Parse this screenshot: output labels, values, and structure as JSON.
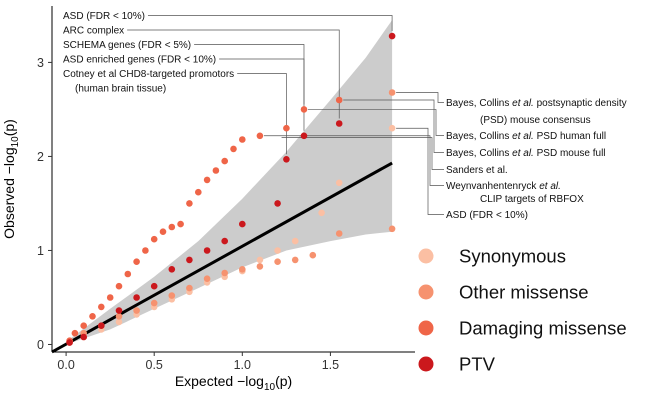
{
  "chart_data": {
    "type": "scatter",
    "title": "",
    "xlabel": "Expected −log10(p)",
    "ylabel": "Observed −log10(p)",
    "xlim": [
      -0.08,
      1.98
    ],
    "ylim": [
      -0.08,
      3.6
    ],
    "x_ticks": [
      "0.0",
      "0.5",
      "1.0",
      "1.5"
    ],
    "y_ticks": [
      "0",
      "1",
      "2",
      "3"
    ],
    "grid": false,
    "legend_position": "bottom-right",
    "reference_line": {
      "x": [
        -0.08,
        1.85
      ],
      "y": [
        -0.08,
        1.93
      ],
      "color": "#000000"
    },
    "confidence_band": {
      "color": "#cccccc",
      "x": [
        0.0,
        0.25,
        0.5,
        0.75,
        1.0,
        1.25,
        1.5,
        1.7,
        1.85
      ],
      "lower": [
        0.0,
        0.16,
        0.38,
        0.6,
        0.82,
        1.0,
        1.1,
        1.17,
        1.2
      ],
      "upper": [
        0.03,
        0.38,
        0.72,
        1.1,
        1.55,
        2.05,
        2.6,
        3.05,
        3.45
      ]
    },
    "series": [
      {
        "name": "Synonymous",
        "color": "#fbbfa3",
        "points": [
          [
            0.02,
            0.02
          ],
          [
            0.1,
            0.08
          ],
          [
            0.2,
            0.16
          ],
          [
            0.3,
            0.24
          ],
          [
            0.4,
            0.32
          ],
          [
            0.5,
            0.4
          ],
          [
            0.6,
            0.48
          ],
          [
            0.7,
            0.56
          ],
          [
            0.8,
            0.66
          ],
          [
            0.9,
            0.72
          ],
          [
            1.0,
            0.78
          ],
          [
            1.1,
            0.9
          ],
          [
            1.2,
            1.0
          ],
          [
            1.3,
            1.1
          ],
          [
            1.45,
            1.4
          ],
          [
            1.55,
            1.72
          ],
          [
            1.85,
            2.3
          ]
        ]
      },
      {
        "name": "Other missense",
        "color": "#f6926f",
        "points": [
          [
            0.02,
            0.03
          ],
          [
            0.1,
            0.12
          ],
          [
            0.2,
            0.2
          ],
          [
            0.3,
            0.3
          ],
          [
            0.4,
            0.36
          ],
          [
            0.5,
            0.44
          ],
          [
            0.6,
            0.52
          ],
          [
            0.7,
            0.6
          ],
          [
            0.8,
            0.7
          ],
          [
            0.9,
            0.76
          ],
          [
            1.0,
            0.8
          ],
          [
            1.1,
            0.83
          ],
          [
            1.2,
            0.88
          ],
          [
            1.3,
            0.9
          ],
          [
            1.4,
            0.95
          ],
          [
            1.55,
            1.18
          ],
          [
            1.85,
            1.23
          ],
          [
            1.85,
            2.68
          ]
        ]
      },
      {
        "name": "Damaging missense",
        "color": "#ef6548",
        "points": [
          [
            0.02,
            0.04
          ],
          [
            0.05,
            0.12
          ],
          [
            0.1,
            0.2
          ],
          [
            0.15,
            0.3
          ],
          [
            0.2,
            0.4
          ],
          [
            0.25,
            0.5
          ],
          [
            0.3,
            0.62
          ],
          [
            0.35,
            0.75
          ],
          [
            0.4,
            0.88
          ],
          [
            0.45,
            1.0
          ],
          [
            0.5,
            1.12
          ],
          [
            0.55,
            1.2
          ],
          [
            0.6,
            1.25
          ],
          [
            0.65,
            1.28
          ],
          [
            0.7,
            1.5
          ],
          [
            0.75,
            1.62
          ],
          [
            0.8,
            1.75
          ],
          [
            0.85,
            1.85
          ],
          [
            0.9,
            1.95
          ],
          [
            0.95,
            2.08
          ],
          [
            1.0,
            2.18
          ],
          [
            1.1,
            2.22
          ],
          [
            1.25,
            2.3
          ],
          [
            1.35,
            2.5
          ],
          [
            1.55,
            2.6
          ]
        ]
      },
      {
        "name": "PTV",
        "color": "#cb181d",
        "points": [
          [
            0.02,
            0.02
          ],
          [
            0.1,
            0.08
          ],
          [
            0.2,
            0.2
          ],
          [
            0.3,
            0.36
          ],
          [
            0.4,
            0.5
          ],
          [
            0.5,
            0.62
          ],
          [
            0.6,
            0.8
          ],
          [
            0.7,
            0.9
          ],
          [
            0.8,
            1.0
          ],
          [
            0.9,
            1.1
          ],
          [
            1.0,
            1.28
          ],
          [
            1.2,
            1.5
          ],
          [
            1.25,
            1.97
          ],
          [
            1.35,
            2.22
          ],
          [
            1.55,
            2.35
          ],
          [
            1.85,
            3.28
          ]
        ]
      }
    ],
    "annotations_left": [
      {
        "label": "ASD (FDR < 10%)",
        "target": [
          1.85,
          3.28
        ]
      },
      {
        "label": "ARC complex",
        "target": [
          1.55,
          2.35
        ]
      },
      {
        "label": "SCHEMA genes (FDR < 5%)",
        "target": [
          1.35,
          2.5
        ]
      },
      {
        "label": "ASD enriched genes (FDR < 10%)",
        "target": [
          1.35,
          2.22
        ]
      },
      {
        "label": "Cotney et al CHD8-targeted promotors",
        "label2": "(human brain tissue)",
        "target": [
          1.25,
          1.97
        ]
      }
    ],
    "annotations_right": [
      {
        "label_pre": "Bayes, Collins ",
        "label_it": "et al.",
        "label_post": " postsynaptic density",
        "label2": "(PSD) mouse consensus",
        "target": [
          1.85,
          2.68
        ]
      },
      {
        "label_pre": "Bayes, Collins ",
        "label_it": "et al.",
        "label_post": " PSD human full",
        "target": [
          1.35,
          2.5
        ]
      },
      {
        "label_pre": "Bayes, Collins ",
        "label_it": "et al.",
        "label_post": " PSD mouse full",
        "target": [
          1.55,
          2.6
        ]
      },
      {
        "label_pre": "Sanders et al.",
        "label_it": "",
        "label_post": "",
        "target": [
          1.2,
          2.2
        ]
      },
      {
        "label_pre": "Weynvanhentenryck ",
        "label_it": "et al.",
        "label_post": "",
        "label2": "CLIP targets of RBFOX",
        "target": [
          1.1,
          2.22
        ]
      },
      {
        "label_pre": "ASD (FDR < 10%)",
        "label_it": "",
        "label_post": "",
        "target": [
          1.85,
          2.3
        ]
      }
    ]
  }
}
